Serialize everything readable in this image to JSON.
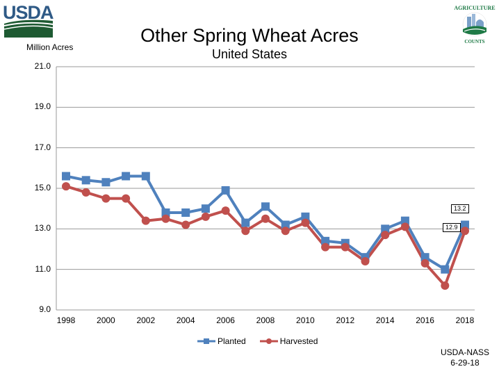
{
  "header": {
    "logo_text": "USDA",
    "badge_top_text": "AGRICULTURE",
    "badge_bottom_text": "COUNTS"
  },
  "source": {
    "line1": "USDA-NASS",
    "line2": "6-29-18"
  },
  "chart_data": {
    "type": "line",
    "title": "Other Spring Wheat Acres",
    "subtitle": "United States",
    "xlabel": "",
    "ylabel": "Million Acres",
    "ylim": [
      9.0,
      21.0
    ],
    "yticks": [
      "9.0",
      "11.0",
      "13.0",
      "15.0",
      "17.0",
      "19.0",
      "21.0"
    ],
    "xticks": [
      "1998",
      "2000",
      "2002",
      "2004",
      "2006",
      "2008",
      "2010",
      "2012",
      "2014",
      "2016",
      "2018"
    ],
    "grid": true,
    "legend_position": "bottom",
    "x": [
      1998,
      1999,
      2000,
      2001,
      2002,
      2003,
      2004,
      2005,
      2006,
      2007,
      2008,
      2009,
      2010,
      2011,
      2012,
      2013,
      2014,
      2015,
      2016,
      2017,
      2018
    ],
    "series": [
      {
        "name": "Planted",
        "color": "#4f81bd",
        "marker": "square",
        "values": [
          15.6,
          15.4,
          15.3,
          15.6,
          15.6,
          13.8,
          13.8,
          14.0,
          14.9,
          13.3,
          14.1,
          13.2,
          13.6,
          12.4,
          12.3,
          11.6,
          13.0,
          13.4,
          11.6,
          11.0,
          13.2
        ]
      },
      {
        "name": "Harvested",
        "color": "#c0504d",
        "marker": "circle",
        "values": [
          15.1,
          14.8,
          14.5,
          14.5,
          13.4,
          13.5,
          13.2,
          13.6,
          13.9,
          12.9,
          13.5,
          12.9,
          13.3,
          12.1,
          12.1,
          11.4,
          12.7,
          13.1,
          11.3,
          10.2,
          12.9
        ]
      }
    ],
    "annotations": [
      {
        "series": "Planted",
        "x": 2018,
        "text": "13.2"
      },
      {
        "series": "Harvested",
        "x": 2018,
        "text": "12.9"
      }
    ]
  }
}
